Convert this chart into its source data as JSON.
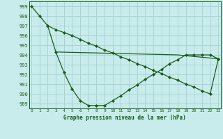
{
  "title": "Graphe pression niveau de la mer (hPa)",
  "background_color": "#c8ecec",
  "grid_color": "#aad4d4",
  "line_color": "#1a5c1a",
  "ylim": [
    988.5,
    999.5
  ],
  "xlim": [
    -0.3,
    23.3
  ],
  "yticks": [
    989,
    990,
    991,
    992,
    993,
    994,
    995,
    996,
    997,
    998,
    999
  ],
  "xticks": [
    0,
    1,
    2,
    3,
    4,
    5,
    6,
    7,
    8,
    9,
    10,
    11,
    12,
    13,
    14,
    15,
    16,
    17,
    18,
    19,
    20,
    21,
    22,
    23
  ],
  "series1_x": [
    0,
    1,
    2,
    3,
    4,
    5,
    6,
    7,
    8,
    9,
    10,
    11,
    12,
    13,
    14,
    15,
    16,
    17,
    18,
    19,
    20,
    21,
    22,
    23
  ],
  "series1_y": [
    999.0,
    998.0,
    997.0,
    994.3,
    992.2,
    990.5,
    989.3,
    988.8,
    988.8,
    988.8,
    989.3,
    989.8,
    990.4,
    990.9,
    991.5,
    992.0,
    992.5,
    993.1,
    993.5,
    994.0,
    994.0,
    994.0,
    994.0,
    993.6
  ],
  "series2_x": [
    3,
    18,
    23
  ],
  "series2_y": [
    994.3,
    994.0,
    993.6
  ],
  "series3_x": [
    2,
    3,
    4,
    5,
    6,
    7,
    8,
    9,
    10,
    11,
    12,
    13,
    14,
    15,
    16,
    17,
    18,
    19,
    20,
    21,
    22,
    23
  ],
  "series3_y": [
    997.0,
    996.6,
    996.3,
    996.0,
    995.6,
    995.2,
    994.9,
    994.5,
    994.2,
    993.8,
    993.5,
    993.1,
    992.8,
    992.4,
    992.1,
    991.7,
    991.4,
    991.0,
    990.7,
    990.3,
    990.0,
    993.6
  ]
}
